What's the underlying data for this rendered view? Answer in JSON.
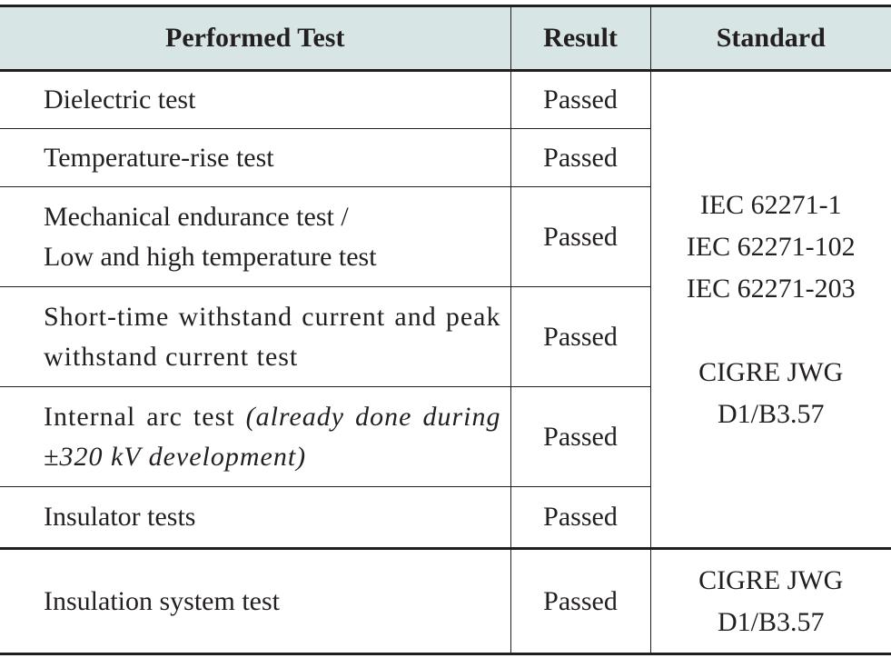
{
  "table": {
    "headers": [
      "Performed Test",
      "Result",
      "Standard"
    ],
    "rows": [
      {
        "test": [
          "Dielectric test"
        ],
        "result": "Passed"
      },
      {
        "test": [
          "Temperature-rise test"
        ],
        "result": "Passed"
      },
      {
        "test": [
          "Mechanical endurance test /",
          "Low and high temperature test"
        ],
        "result": "Passed"
      },
      {
        "test": [
          "Short-time withstand current and",
          "peak withstand current test"
        ],
        "result": "Passed"
      },
      {
        "test_main": "Internal arc test ",
        "test_note_1": "(already done",
        "test_note_2": "during ±320 kV development)",
        "result": "Passed"
      },
      {
        "test": [
          "Insulator tests"
        ],
        "result": "Passed"
      },
      {
        "test": [
          "Insulation system test"
        ],
        "result": "Passed"
      }
    ],
    "standard_group_1": [
      "IEC 62271-1",
      "IEC 62271-102",
      "IEC 62271-203",
      "CIGRE JWG",
      "D1/B3.57"
    ],
    "standard_group_2": [
      "CIGRE JWG",
      "D1/B3.57"
    ]
  }
}
